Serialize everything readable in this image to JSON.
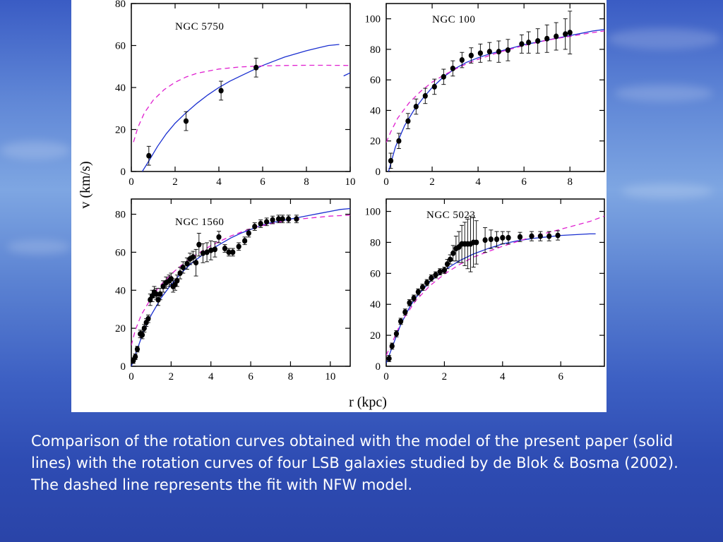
{
  "slide": {
    "caption": "Comparison of the rotation curves obtained with the model of the present paper (solid lines) with the rotation curves of four LSB galaxies studied by de Blok & Bosma (2002). The dashed line represents the fit with NFW model."
  },
  "figure": {
    "ylabel": "v (km/s)",
    "xlabel": "r (kpc)",
    "colors": {
      "model": "#1a2fd0",
      "nfw": "#e020d0",
      "data": "#000000",
      "frame": "#000000"
    }
  },
  "chart_data": [
    {
      "type": "scatter",
      "title": "NGC 5750",
      "xlim": [
        0,
        10
      ],
      "ylim": [
        0,
        80
      ],
      "xticks": [
        0,
        2,
        4,
        6,
        8,
        10
      ],
      "yticks": [
        0,
        20,
        40,
        60,
        80
      ],
      "points": [
        {
          "x": 0.8,
          "y": 7.5,
          "err": 4.5
        },
        {
          "x": 2.5,
          "y": 24,
          "err": 4.5
        },
        {
          "x": 4.1,
          "y": 38.5,
          "err": 4.5
        },
        {
          "x": 5.7,
          "y": 49.5,
          "err": 4.5
        }
      ],
      "series": [
        {
          "name": "model",
          "style": "solid",
          "x": [
            0.5,
            0.8,
            1.2,
            1.6,
            2,
            2.5,
            3,
            3.5,
            4,
            4.5,
            5,
            5.5,
            6,
            6.5,
            7,
            7.5,
            8,
            8.5,
            9,
            9.5
          ],
          "y": [
            0,
            5,
            12,
            18,
            23,
            28,
            32.5,
            36.5,
            40,
            43,
            45.5,
            48,
            50.5,
            52.5,
            54.5,
            56,
            57.5,
            58.8,
            60,
            60.5
          ]
        },
        {
          "name": "model-tail",
          "style": "solid",
          "x": [
            9.7,
            10
          ],
          "y": [
            45.5,
            47
          ]
        },
        {
          "name": "NFW",
          "style": "dashed",
          "x": [
            0.1,
            0.3,
            0.6,
            1,
            1.5,
            2,
            2.5,
            3,
            4,
            5,
            6,
            7,
            8,
            9,
            10
          ],
          "y": [
            14,
            21,
            28,
            34,
            39,
            42.5,
            45,
            46.8,
            48.8,
            49.8,
            50.3,
            50.5,
            50.6,
            50.6,
            50.5
          ]
        }
      ]
    },
    {
      "type": "scatter",
      "title": "NGC 100",
      "xlim": [
        0,
        9.5
      ],
      "ylim": [
        0,
        110
      ],
      "xticks": [
        0,
        2,
        4,
        6,
        8
      ],
      "yticks": [
        0,
        20,
        40,
        60,
        80,
        100
      ],
      "points": [
        {
          "x": 0.2,
          "y": 7,
          "err": 5
        },
        {
          "x": 0.55,
          "y": 20,
          "err": 5
        },
        {
          "x": 0.95,
          "y": 33,
          "err": 5
        },
        {
          "x": 1.3,
          "y": 42.5,
          "err": 5
        },
        {
          "x": 1.7,
          "y": 49.5,
          "err": 5
        },
        {
          "x": 2.1,
          "y": 55.5,
          "err": 5
        },
        {
          "x": 2.5,
          "y": 62,
          "err": 5
        },
        {
          "x": 2.9,
          "y": 67.5,
          "err": 5
        },
        {
          "x": 3.3,
          "y": 73,
          "err": 5
        },
        {
          "x": 3.7,
          "y": 76,
          "err": 5
        },
        {
          "x": 4.1,
          "y": 77.5,
          "err": 6
        },
        {
          "x": 4.5,
          "y": 78.5,
          "err": 6
        },
        {
          "x": 4.9,
          "y": 78.5,
          "err": 7
        },
        {
          "x": 5.3,
          "y": 79.5,
          "err": 7
        },
        {
          "x": 5.9,
          "y": 83.5,
          "err": 6
        },
        {
          "x": 6.2,
          "y": 84.5,
          "err": 7
        },
        {
          "x": 6.6,
          "y": 85.5,
          "err": 8
        },
        {
          "x": 7.0,
          "y": 87,
          "err": 9
        },
        {
          "x": 7.4,
          "y": 88.5,
          "err": 9
        },
        {
          "x": 7.8,
          "y": 90,
          "err": 10
        },
        {
          "x": 8.0,
          "y": 91,
          "err": 14
        }
      ],
      "series": [
        {
          "name": "model",
          "style": "solid",
          "x": [
            0.1,
            0.4,
            0.8,
            1.2,
            1.6,
            2,
            2.5,
            3,
            3.5,
            4,
            4.5,
            5,
            5.5,
            6,
            6.5,
            7,
            7.5,
            8,
            8.5,
            9,
            9.5
          ],
          "y": [
            0,
            16,
            30,
            40,
            48,
            55,
            62,
            67.5,
            71.5,
            74.5,
            77,
            79,
            81,
            83,
            84.5,
            86,
            87.5,
            89,
            90.5,
            92,
            93
          ]
        },
        {
          "name": "NFW",
          "style": "dashed",
          "x": [
            0,
            0.2,
            0.5,
            1,
            1.5,
            2,
            2.5,
            3,
            3.5,
            4,
            5,
            6,
            7,
            8,
            9,
            9.5
          ],
          "y": [
            19,
            26,
            35,
            45,
            52.5,
            58.5,
            63,
            67,
            70.5,
            73.5,
            78.5,
            82.5,
            86,
            88.5,
            91,
            92
          ]
        }
      ]
    },
    {
      "type": "scatter",
      "title": "NGC 1560",
      "xlim": [
        0,
        11
      ],
      "ylim": [
        0,
        88
      ],
      "xticks": [
        0,
        2,
        4,
        6,
        8,
        10
      ],
      "yticks": [
        0,
        20,
        40,
        60,
        80
      ],
      "points": [
        {
          "x": 0.1,
          "y": 3,
          "err": 1.5
        },
        {
          "x": 0.2,
          "y": 5,
          "err": 1.5
        },
        {
          "x": 0.3,
          "y": 9,
          "err": 1.5
        },
        {
          "x": 0.45,
          "y": 17,
          "err": 2
        },
        {
          "x": 0.55,
          "y": 16.5,
          "err": 2
        },
        {
          "x": 0.65,
          "y": 20,
          "err": 2
        },
        {
          "x": 0.75,
          "y": 23,
          "err": 2
        },
        {
          "x": 0.85,
          "y": 25,
          "err": 2
        },
        {
          "x": 0.95,
          "y": 35,
          "err": 3
        },
        {
          "x": 1.05,
          "y": 37,
          "err": 3
        },
        {
          "x": 1.15,
          "y": 39,
          "err": 3
        },
        {
          "x": 1.25,
          "y": 38,
          "err": 3
        },
        {
          "x": 1.35,
          "y": 35,
          "err": 3
        },
        {
          "x": 1.45,
          "y": 38,
          "err": 3
        },
        {
          "x": 1.6,
          "y": 42,
          "err": 3
        },
        {
          "x": 1.75,
          "y": 44,
          "err": 3
        },
        {
          "x": 1.9,
          "y": 45,
          "err": 3
        },
        {
          "x": 2.0,
          "y": 46,
          "err": 3
        },
        {
          "x": 2.1,
          "y": 42,
          "err": 3
        },
        {
          "x": 2.2,
          "y": 43,
          "err": 3
        },
        {
          "x": 2.3,
          "y": 45,
          "err": 3
        },
        {
          "x": 2.45,
          "y": 49,
          "err": 3
        },
        {
          "x": 2.6,
          "y": 52,
          "err": 3
        },
        {
          "x": 2.8,
          "y": 54,
          "err": 3
        },
        {
          "x": 2.95,
          "y": 56.5,
          "err": 3
        },
        {
          "x": 3.1,
          "y": 57.5,
          "err": 3
        },
        {
          "x": 3.25,
          "y": 54.5,
          "err": 7
        },
        {
          "x": 3.4,
          "y": 64,
          "err": 6
        },
        {
          "x": 3.6,
          "y": 59.5,
          "err": 5
        },
        {
          "x": 3.8,
          "y": 60,
          "err": 5
        },
        {
          "x": 4.0,
          "y": 61,
          "err": 5
        },
        {
          "x": 4.2,
          "y": 61.5,
          "err": 4
        },
        {
          "x": 4.4,
          "y": 68,
          "err": 3
        },
        {
          "x": 4.7,
          "y": 62,
          "err": 2
        },
        {
          "x": 4.9,
          "y": 60,
          "err": 2
        },
        {
          "x": 5.1,
          "y": 60,
          "err": 2
        },
        {
          "x": 5.4,
          "y": 63,
          "err": 2
        },
        {
          "x": 5.7,
          "y": 66,
          "err": 2
        },
        {
          "x": 5.9,
          "y": 70,
          "err": 2
        },
        {
          "x": 6.2,
          "y": 73.5,
          "err": 2
        },
        {
          "x": 6.5,
          "y": 75,
          "err": 2
        },
        {
          "x": 6.8,
          "y": 76,
          "err": 2
        },
        {
          "x": 7.1,
          "y": 77,
          "err": 2
        },
        {
          "x": 7.4,
          "y": 77.5,
          "err": 2
        },
        {
          "x": 7.6,
          "y": 77.5,
          "err": 2
        },
        {
          "x": 7.9,
          "y": 77.5,
          "err": 2
        },
        {
          "x": 8.3,
          "y": 77.5,
          "err": 2
        }
      ],
      "series": [
        {
          "name": "model",
          "style": "solid",
          "x": [
            0,
            0.3,
            0.6,
            1,
            1.5,
            2,
            2.5,
            3,
            3.5,
            4,
            4.5,
            5,
            5.5,
            6,
            6.5,
            7,
            7.5,
            8,
            8.5,
            9,
            9.5,
            10,
            10.5,
            11
          ],
          "y": [
            0,
            9,
            18,
            27,
            36,
            43,
            49,
            54,
            58,
            61.5,
            64.5,
            67.5,
            70,
            72,
            74,
            75.5,
            76.5,
            77.5,
            78.5,
            79.5,
            80.5,
            81.5,
            82.5,
            83
          ]
        },
        {
          "name": "NFW",
          "style": "dashed",
          "x": [
            0,
            0.2,
            0.5,
            1,
            1.5,
            2,
            2.5,
            3,
            4,
            5,
            6,
            7,
            8,
            9,
            10,
            11
          ],
          "y": [
            11,
            19,
            27,
            36,
            43,
            48.5,
            53,
            57,
            63.5,
            68.5,
            72.5,
            75,
            77,
            78,
            79,
            79.5
          ]
        }
      ]
    },
    {
      "type": "scatter",
      "title": "NGC 5023",
      "xlim": [
        0,
        7.5
      ],
      "ylim": [
        0,
        108
      ],
      "xticks": [
        0,
        2,
        4,
        6
      ],
      "yticks": [
        0,
        20,
        40,
        60,
        80,
        100
      ],
      "points": [
        {
          "x": 0.1,
          "y": 5,
          "err": 2
        },
        {
          "x": 0.2,
          "y": 13,
          "err": 2
        },
        {
          "x": 0.35,
          "y": 21,
          "err": 2
        },
        {
          "x": 0.5,
          "y": 29,
          "err": 2
        },
        {
          "x": 0.65,
          "y": 35,
          "err": 2
        },
        {
          "x": 0.8,
          "y": 41,
          "err": 2
        },
        {
          "x": 0.95,
          "y": 44,
          "err": 2
        },
        {
          "x": 1.1,
          "y": 48,
          "err": 2
        },
        {
          "x": 1.25,
          "y": 51,
          "err": 2
        },
        {
          "x": 1.4,
          "y": 54,
          "err": 2
        },
        {
          "x": 1.55,
          "y": 57,
          "err": 2
        },
        {
          "x": 1.7,
          "y": 59,
          "err": 2
        },
        {
          "x": 1.85,
          "y": 61,
          "err": 2
        },
        {
          "x": 2.0,
          "y": 62,
          "err": 2
        },
        {
          "x": 2.1,
          "y": 66,
          "err": 3
        },
        {
          "x": 2.2,
          "y": 69,
          "err": 3
        },
        {
          "x": 2.3,
          "y": 73,
          "err": 5
        },
        {
          "x": 2.4,
          "y": 76,
          "err": 8
        },
        {
          "x": 2.5,
          "y": 77,
          "err": 10
        },
        {
          "x": 2.6,
          "y": 79,
          "err": 12
        },
        {
          "x": 2.7,
          "y": 79,
          "err": 14
        },
        {
          "x": 2.8,
          "y": 79,
          "err": 16
        },
        {
          "x": 2.9,
          "y": 79,
          "err": 18
        },
        {
          "x": 3.0,
          "y": 80,
          "err": 16
        },
        {
          "x": 3.1,
          "y": 80,
          "err": 14
        },
        {
          "x": 3.4,
          "y": 81.5,
          "err": 8
        },
        {
          "x": 3.6,
          "y": 82,
          "err": 6
        },
        {
          "x": 3.8,
          "y": 82,
          "err": 5
        },
        {
          "x": 4.0,
          "y": 83,
          "err": 4
        },
        {
          "x": 4.2,
          "y": 83,
          "err": 4
        },
        {
          "x": 4.6,
          "y": 83.5,
          "err": 3
        },
        {
          "x": 5.0,
          "y": 84,
          "err": 3
        },
        {
          "x": 5.3,
          "y": 84,
          "err": 3
        },
        {
          "x": 5.6,
          "y": 84,
          "err": 3
        },
        {
          "x": 5.9,
          "y": 84.5,
          "err": 3
        }
      ],
      "series": [
        {
          "name": "model",
          "style": "solid",
          "x": [
            0,
            0.2,
            0.5,
            0.8,
            1,
            1.5,
            2,
            2.5,
            3,
            3.5,
            4,
            4.5,
            5,
            5.5,
            6,
            6.5,
            7,
            7.2
          ],
          "y": [
            2,
            12,
            27,
            38,
            44,
            54.5,
            62,
            68,
            72.5,
            76,
            79,
            81,
            82.5,
            83.5,
            84.5,
            85,
            85.5,
            85.5
          ]
        },
        {
          "name": "NFW",
          "style": "dashed",
          "x": [
            0,
            0.2,
            0.5,
            1,
            1.5,
            2,
            2.5,
            3,
            4,
            5,
            6,
            7,
            7.5
          ],
          "y": [
            7,
            15,
            28,
            42,
            52,
            59.5,
            65.5,
            70.5,
            77.5,
            83.5,
            88.5,
            93.5,
            97
          ]
        }
      ]
    }
  ]
}
